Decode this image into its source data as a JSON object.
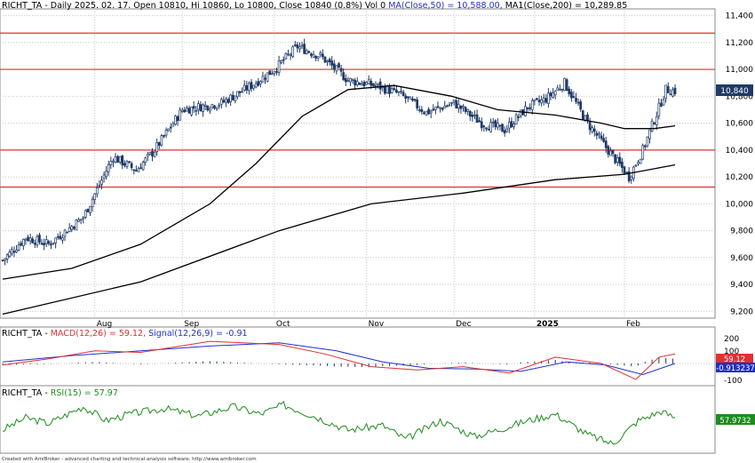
{
  "colors": {
    "up": "#ffffff",
    "down": "#1f3a66",
    "wick": "#1f3a66",
    "ma50": "#000000",
    "ma200": "#000000",
    "hline": "#e03030",
    "macd": "#e03030",
    "signal": "#2030c8",
    "hist": "#1f3a66",
    "rsi": "#1e8c1e",
    "grid": "#c8c8c8"
  },
  "price_panel": {
    "header": {
      "symbol": "RICHT_TA",
      "text": " - Daily 2025. 02. 17. Open 10810, Hi 10860, Lo 10800, Close 10840 (0.8%) Vol 0 ",
      "ma50_label": "MA(Close,50) = 10,588.00, ",
      "ma200_label": "MA1(Close,200) = 10,289.85"
    },
    "last_price": "10,840"
  },
  "macd_panel": {
    "symbol": "RICHT_TA",
    "sep": " - ",
    "macd_label": "MACD(12,26) = 59.12, ",
    "signal_label": "Signal(12,26,9) = -0.91",
    "macd_value": "59.12",
    "signal_value": "-0.913237",
    "ticks": [
      "200",
      "100",
      "-100"
    ]
  },
  "rsi_panel": {
    "symbol": "RICHT_TA",
    "sep": " - ",
    "rsi_label": "RSI(15) = 57.97",
    "rsi_value": "57.9732"
  },
  "footer": "Created with AmiBroker - advanced charting and technical analysis software. http://www.amibroker.com",
  "chart_data": {
    "type": "candlestick",
    "title": "RICHT_TA - Daily",
    "x_labels": [
      "Aug",
      "Sep",
      "Oct",
      "Nov",
      "Dec",
      "2025",
      "Feb"
    ],
    "y_ticks": [
      9200,
      9400,
      9600,
      9800,
      10000,
      10200,
      10400,
      10600,
      10800,
      11000,
      11200,
      11400
    ],
    "ylim": [
      9150,
      11450
    ],
    "horizontal_levels": [
      11270,
      11000,
      10400,
      10125
    ],
    "close_path": [
      [
        0,
        9580
      ],
      [
        10,
        9750
      ],
      [
        20,
        9700
      ],
      [
        35,
        9900
      ],
      [
        48,
        10350
      ],
      [
        58,
        10250
      ],
      [
        66,
        10400
      ],
      [
        78,
        10700
      ],
      [
        95,
        10750
      ],
      [
        108,
        10880
      ],
      [
        118,
        11000
      ],
      [
        128,
        11170
      ],
      [
        138,
        11100
      ],
      [
        150,
        10920
      ],
      [
        162,
        10880
      ],
      [
        172,
        10820
      ],
      [
        184,
        10680
      ],
      [
        196,
        10750
      ],
      [
        208,
        10600
      ],
      [
        218,
        10550
      ],
      [
        228,
        10720
      ],
      [
        236,
        10780
      ],
      [
        244,
        10900
      ],
      [
        254,
        10600
      ],
      [
        262,
        10420
      ],
      [
        272,
        10200
      ],
      [
        278,
        10400
      ],
      [
        288,
        10850
      ],
      [
        292,
        10840
      ]
    ],
    "ma50": [
      [
        0,
        9440
      ],
      [
        30,
        9520
      ],
      [
        60,
        9700
      ],
      [
        90,
        10000
      ],
      [
        110,
        10300
      ],
      [
        130,
        10650
      ],
      [
        150,
        10850
      ],
      [
        170,
        10880
      ],
      [
        195,
        10800
      ],
      [
        215,
        10700
      ],
      [
        240,
        10660
      ],
      [
        260,
        10600
      ],
      [
        270,
        10560
      ],
      [
        283,
        10560
      ],
      [
        292,
        10580
      ]
    ],
    "ma200": [
      [
        0,
        9180
      ],
      [
        60,
        9420
      ],
      [
        120,
        9800
      ],
      [
        160,
        10000
      ],
      [
        200,
        10080
      ],
      [
        240,
        10180
      ],
      [
        270,
        10220
      ],
      [
        292,
        10290
      ]
    ],
    "last_close": 10840
  },
  "macd_data": {
    "ylim": [
      -140,
      230
    ],
    "macd": [
      [
        0,
        -10
      ],
      [
        20,
        30
      ],
      [
        40,
        80
      ],
      [
        60,
        70
      ],
      [
        90,
        140
      ],
      [
        120,
        120
      ],
      [
        140,
        60
      ],
      [
        160,
        -20
      ],
      [
        180,
        -40
      ],
      [
        200,
        -20
      ],
      [
        220,
        -60
      ],
      [
        240,
        40
      ],
      [
        260,
        0
      ],
      [
        275,
        -100
      ],
      [
        285,
        40
      ],
      [
        292,
        60
      ]
    ],
    "signal": [
      [
        0,
        10
      ],
      [
        30,
        50
      ],
      [
        60,
        80
      ],
      [
        90,
        110
      ],
      [
        120,
        130
      ],
      [
        145,
        80
      ],
      [
        165,
        10
      ],
      [
        185,
        -30
      ],
      [
        205,
        -35
      ],
      [
        225,
        -50
      ],
      [
        245,
        10
      ],
      [
        262,
        -10
      ],
      [
        278,
        -70
      ],
      [
        292,
        0
      ]
    ]
  },
  "rsi_data": {
    "ylim": [
      20,
      80
    ],
    "rsi": [
      [
        0,
        45
      ],
      [
        10,
        58
      ],
      [
        20,
        52
      ],
      [
        35,
        70
      ],
      [
        45,
        55
      ],
      [
        55,
        62
      ],
      [
        70,
        68
      ],
      [
        85,
        60
      ],
      [
        100,
        70
      ],
      [
        112,
        62
      ],
      [
        122,
        72
      ],
      [
        135,
        60
      ],
      [
        150,
        45
      ],
      [
        165,
        50
      ],
      [
        175,
        35
      ],
      [
        190,
        55
      ],
      [
        205,
        38
      ],
      [
        215,
        45
      ],
      [
        228,
        55
      ],
      [
        240,
        62
      ],
      [
        254,
        40
      ],
      [
        265,
        30
      ],
      [
        276,
        55
      ],
      [
        286,
        65
      ],
      [
        292,
        58
      ]
    ]
  }
}
